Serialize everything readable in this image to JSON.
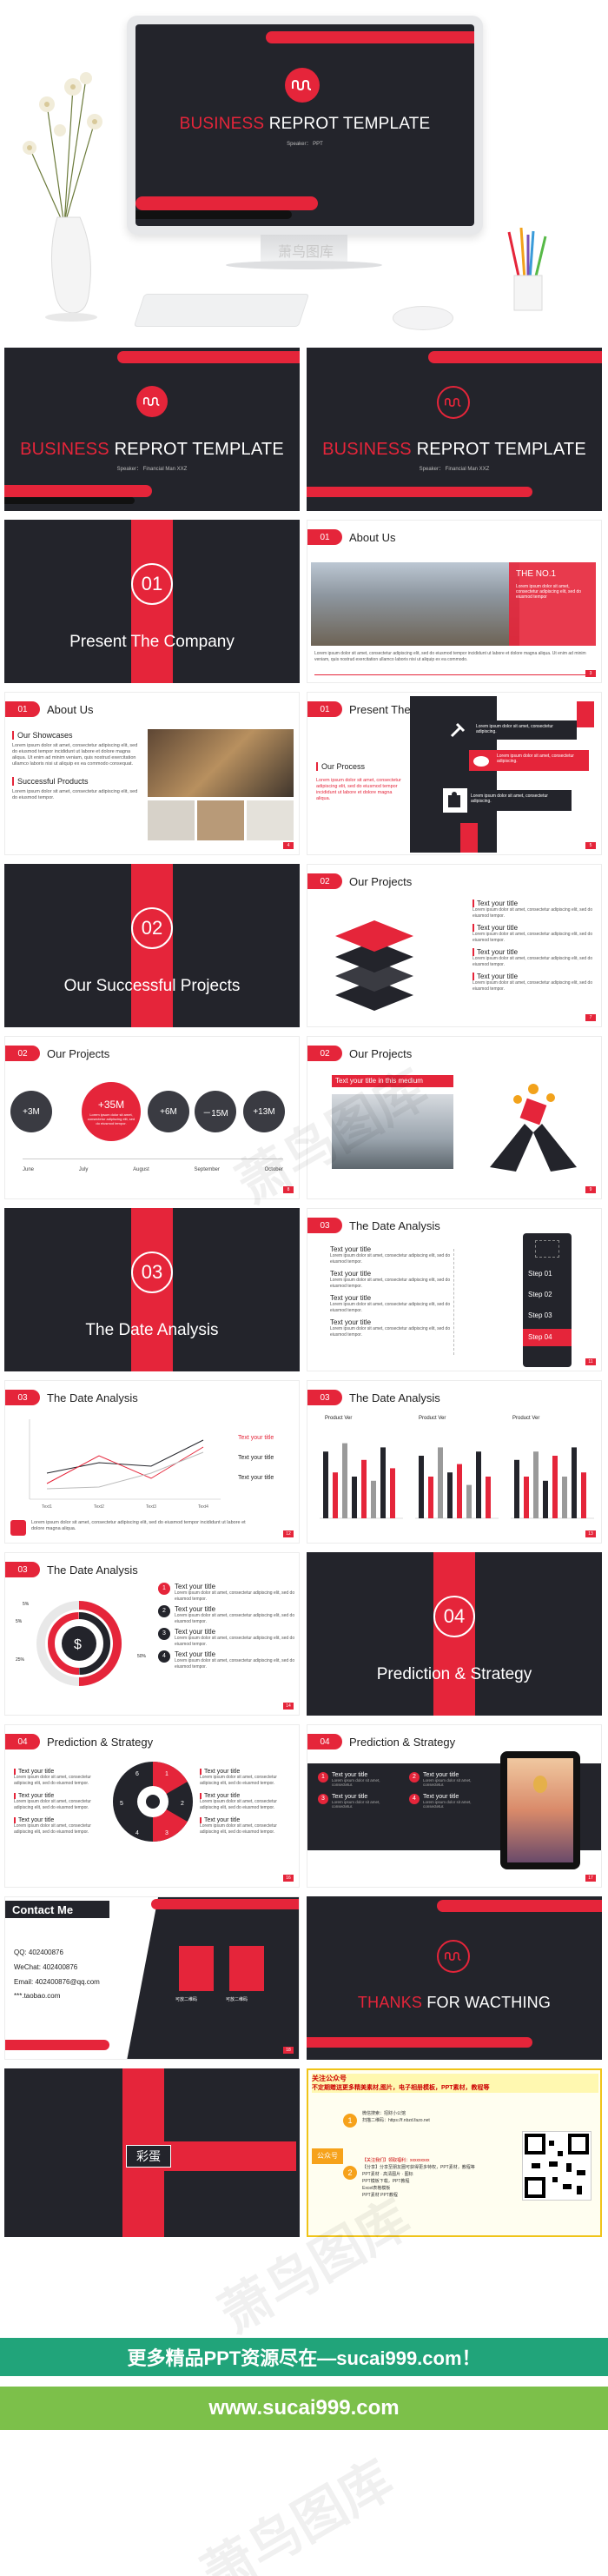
{
  "hero": {
    "title_red": "BUSINESS",
    "title_white": " REPROT TEMPLATE",
    "subtitle": "Speaker：  PPT",
    "watermark": "萧鸟图库"
  },
  "cover": {
    "title_red": "BUSINESS",
    "title_white": " REPROT TEMPLATE",
    "subtitle": "Speaker：  Financial Man XXZ"
  },
  "cover2": {
    "title_red": "BUSINESS",
    "title_white": " REPROT TEMPLATE",
    "subtitle": "Speaker：  Financial Man XXZ"
  },
  "s1": {
    "num": "01",
    "title": "Present The Company"
  },
  "about1": {
    "num": "01",
    "title": "About Us",
    "badge": "THE NO.1",
    "badge_text": "Lorem ipsum dolor sit amet, consectetur adipiscing elit, sed do eiusmod tempor",
    "caption": "Lorem ipsum dolor sit amet, consectetur adipiscing elit, sed do eiusmod tempor incididunt ut labore et dolore magna aliqua. Ut enim ad minim veniam, quis nostrud exercitation ullamco laboris nisi ut aliquip ex ea commodo.",
    "page": "3"
  },
  "about2": {
    "num": "01",
    "title": "About Us",
    "h1": "Our Showcases",
    "p1": "Lorem ipsum dolor sit amet, consectetur adipiscing elit, sed do eiusmod tempor incididunt ut labore et dolore magna aliqua. Ut enim ad minim veniam, quis nostrud exercitation ullamco laboris nisi ut aliquip ex ea commodo consequat.",
    "h2": "Successful Products",
    "p2": "Lorem ipsum dolor sit amet, consectetur adipiscing elit, sed do eiusmod tempor.",
    "page": "4"
  },
  "present": {
    "num": "01",
    "title": "Present The Company",
    "sub": "Our Process",
    "body": "Lorem ipsum dolor sit amet, consectetur adipiscing elit, sed do eiusmod tempor incididunt ut labore et dolore magna aliqua.",
    "b1": "Lorem ipsum dolor sit amet, consectetur adipiscing.",
    "b2": "Lorem ipsum dolor sit amet, consectetur adipiscing.",
    "b3": "Lorem ipsum dolor sit amet, consectetur adipiscing.",
    "page": "5"
  },
  "s2": {
    "num": "02",
    "title": "Our Successful Projects"
  },
  "proj1": {
    "num": "02",
    "title": "Our Projects",
    "items": [
      {
        "t": "Text your title",
        "d": "Lorem ipsum dolor sit amet, consectetur adipiscing elit, sed do eiusmod tempor."
      },
      {
        "t": "Text your title",
        "d": "Lorem ipsum dolor sit amet, consectetur adipiscing elit, sed do eiusmod tempor."
      },
      {
        "t": "Text your title",
        "d": "Lorem ipsum dolor sit amet, consectetur adipiscing elit, sed do eiusmod tempor."
      },
      {
        "t": "Text your title",
        "d": "Lorem ipsum dolor sit amet, consectetur adipiscing elit, sed do eiusmod tempor."
      }
    ],
    "page": "7"
  },
  "proj2": {
    "num": "02",
    "title": "Our Projects",
    "circles": [
      "+3M",
      "+35M",
      "+6M",
      "－15M",
      "+13M"
    ],
    "center_text": "Lorem ipsum dolor sit amet, consectetur adipiscing elit, sed do eiusmod tempor.",
    "months": [
      "June",
      "July",
      "August",
      "September",
      "October"
    ],
    "page": "8"
  },
  "proj3": {
    "num": "02",
    "title": "Our Projects",
    "banner": "Text your title in this medium",
    "page": "9"
  },
  "s3": {
    "num": "03",
    "title": "The Date Analysis"
  },
  "date1": {
    "num": "03",
    "title": "The Date Analysis",
    "items": [
      {
        "t": "Text your title",
        "d": "Lorem ipsum dolor sit amet, consectetur adipiscing elit, sed do eiusmod tempor."
      },
      {
        "t": "Text your title",
        "d": "Lorem ipsum dolor sit amet, consectetur adipiscing elit, sed do eiusmod tempor."
      },
      {
        "t": "Text your title",
        "d": "Lorem ipsum dolor sit amet, consectetur adipiscing elit, sed do eiusmod tempor."
      },
      {
        "t": "Text your title",
        "d": "Lorem ipsum dolor sit amet, consectetur adipiscing elit, sed do eiusmod tempor."
      }
    ],
    "steps": [
      "Step 01",
      "Step 02",
      "Step 03",
      "Step 04"
    ],
    "page": "11"
  },
  "date2": {
    "num": "03",
    "title": "The Date Analysis",
    "legend": [
      "Text your title",
      "Text your title",
      "Text your title"
    ],
    "xlabels": [
      "Text1",
      "Text2",
      "Text3",
      "Text4"
    ],
    "yticks": [
      "0",
      "1",
      "2",
      "3",
      "4",
      "5",
      "6"
    ],
    "caption": "Lorem ipsum dolor sit amet, consectetur adipiscing elit, sed do eiusmod tempor incididunt ut labore et dolore magna aliqua.",
    "page": "12"
  },
  "date3": {
    "num": "03",
    "title": "The Date Analysis",
    "groups": [
      "Product Ver",
      "Product Ver",
      "Product Ver"
    ],
    "page": "13"
  },
  "date4": {
    "num": "03",
    "title": "The Date Analysis",
    "pcts": [
      "5%",
      "5%",
      "25%",
      "50%"
    ],
    "items": [
      {
        "n": "1",
        "t": "Text your title",
        "d": "Lorem ipsum dolor sit amet, consectetur adipiscing elit, sed do eiusmod tempor."
      },
      {
        "n": "2",
        "t": "Text your title",
        "d": "Lorem ipsum dolor sit amet, consectetur adipiscing elit, sed do eiusmod tempor."
      },
      {
        "n": "3",
        "t": "Text your title",
        "d": "Lorem ipsum dolor sit amet, consectetur adipiscing elit, sed do eiusmod tempor."
      },
      {
        "n": "4",
        "t": "Text your title",
        "d": "Lorem ipsum dolor sit amet, consectetur adipiscing elit, sed do eiusmod tempor."
      }
    ],
    "page": "14"
  },
  "s4": {
    "num": "04",
    "title": "Prediction & Strategy"
  },
  "pred1": {
    "num": "04",
    "title": "Prediction & Strategy",
    "left": [
      {
        "t": "Text your title",
        "d": "Lorem ipsum dolor sit amet, consectetur adipiscing elit, sed do eiusmod tempor."
      },
      {
        "t": "Text your title",
        "d": "Lorem ipsum dolor sit amet, consectetur adipiscing elit, sed do eiusmod tempor."
      },
      {
        "t": "Text your title",
        "d": "Lorem ipsum dolor sit amet, consectetur adipiscing elit, sed do eiusmod tempor."
      }
    ],
    "right": [
      {
        "t": "Text your title",
        "d": "Lorem ipsum dolor sit amet, consectetur adipiscing elit, sed do eiusmod tempor."
      },
      {
        "t": "Text your title",
        "d": "Lorem ipsum dolor sit amet, consectetur adipiscing elit, sed do eiusmod tempor."
      },
      {
        "t": "Text your title",
        "d": "Lorem ipsum dolor sit amet, consectetur adipiscing elit, sed do eiusmod tempor."
      }
    ],
    "wheel": [
      "1",
      "2",
      "3",
      "4",
      "5",
      "6"
    ],
    "page": "16"
  },
  "pred2": {
    "num": "04",
    "title": "Prediction & Strategy",
    "items": [
      {
        "n": "1",
        "t": "Text your title"
      },
      {
        "n": "2",
        "t": "Text your title"
      },
      {
        "n": "3",
        "t": "Text your title"
      },
      {
        "n": "4",
        "t": "Text your title"
      }
    ],
    "desc": "Lorem ipsum dolor sit amet, consectetur.",
    "page": "17"
  },
  "contact": {
    "title": "Contact Me",
    "qq": "QQ: 402400876",
    "wechat": "WeChat: 402400876",
    "email": "Email: 402400876@qq.com",
    "web": "***.taobao.com",
    "qr1": "可放二维码",
    "qr2": "可放二维码",
    "page": "18"
  },
  "thanks": {
    "red": "THANKS",
    "white": " FOR WACTHING"
  },
  "egg": {
    "label": "彩蛋"
  },
  "promo": {
    "title": "关注公众号",
    "subtitle": "不定期赠送更多精美素材,图片，电子相册模板，PPT素材，教程等",
    "steps": [
      "1",
      "2"
    ],
    "l1": "微信搜索：招财小公馆",
    "l2": "扫描二维码：https://f.nbzd.fazo.net",
    "side": "公众号",
    "l3": "【关注我们】领取福利：xxxxxxxxx",
    "l4": "【分享】分享至朋友圈可获得更多特权，PPT素材，教程等",
    "l5": "PPT素材 · 高清图片 · 图标",
    "l6": "PPT模板下载，PPT教程",
    "l7": "Excel表格模板",
    "l8": "PPT素材 PPT教程"
  },
  "footer": {
    "line1": "更多精品PPT资源尽在—sucai999.com！",
    "line2": "www.sucai999.com"
  },
  "watermarks": [
    "萧鸟图库",
    "萧鸟图库",
    "萧鸟图库"
  ],
  "colors": {
    "accent": "#e5253a",
    "dark": "#23242b",
    "green": "#21a47a",
    "lime": "#7cc04a"
  }
}
